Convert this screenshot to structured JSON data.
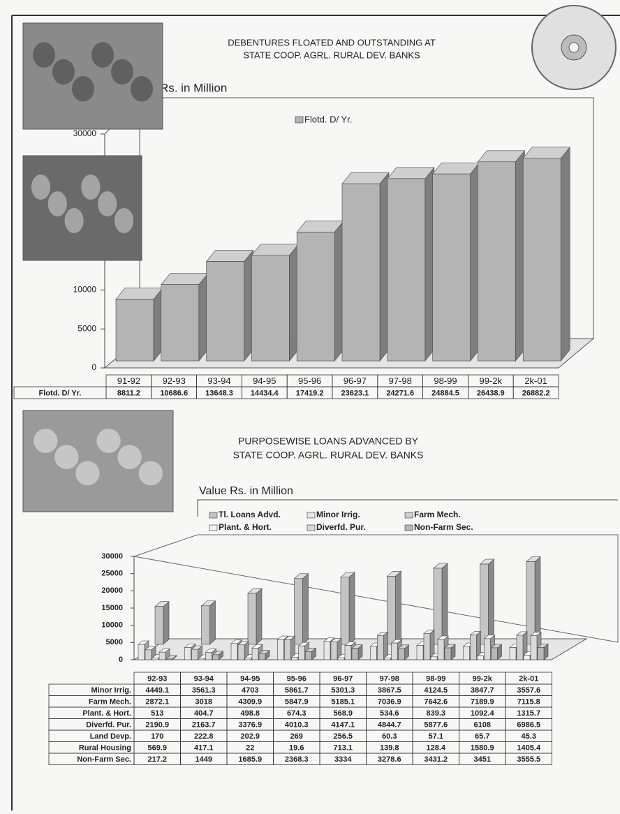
{
  "chart_data": [
    {
      "type": "bar3d",
      "title_lines": [
        "DEBENTURES FLOATED AND OUTSTANDING AT",
        "STATE COOP. AGRL. RURAL DEV. BANKS"
      ],
      "y_label": "Value Rs. in Million",
      "categories": [
        "91-92",
        "92-93",
        "93-94",
        "94-95",
        "95-96",
        "96-97",
        "97-98",
        "98-99",
        "99-2k",
        "2k-01"
      ],
      "series": [
        {
          "name": "Flotd. D/ Yr.",
          "color": "#b4b4b4",
          "show_bar": true,
          "in_table": true,
          "values": [
            8811.2,
            10686.6,
            13648.3,
            14434.4,
            17419.2,
            23623.1,
            24271.6,
            24884.5,
            26438.9,
            26882.2
          ]
        }
      ],
      "ylim": [
        0,
        30000
      ],
      "yticks": [
        0,
        5000,
        10000,
        15000,
        20000,
        25000,
        30000
      ]
    },
    {
      "type": "clustered3d",
      "title_lines": [
        "PURPOSEWISE LOANS ADVANCED BY",
        "STATE COOP. AGRL. RURAL DEV. BANKS"
      ],
      "y_label": "Value Rs. in Million",
      "categories": [
        "92-93",
        "93-94",
        "94-95",
        "95-96",
        "96-97",
        "97-98",
        "98-99",
        "99-2k",
        "2k-01"
      ],
      "series": [
        {
          "name": "Tl. Loans Advd.",
          "color": "#c4c4c4",
          "show_bar": true,
          "in_table": false,
          "values": [
            11000,
            11200,
            14800,
            19100,
            19500,
            19800,
            22100,
            23300,
            24000
          ]
        },
        {
          "name": "Minor Irrig.",
          "color": "#e6e6e6",
          "show_bar": true,
          "in_table": true,
          "values": [
            4449.1,
            3561.3,
            4703,
            5861.7,
            5301.3,
            3867.5,
            4124.5,
            3847.7,
            3557.6
          ]
        },
        {
          "name": "Farm Mech.",
          "color": "#cfcfcf",
          "show_bar": true,
          "in_table": true,
          "values": [
            2872.1,
            3018,
            4309.9,
            5847.9,
            5185.1,
            7036.9,
            7642.6,
            7189.9,
            7115.8
          ]
        },
        {
          "name": "Plant. & Hort.",
          "color": "#f2f2f2",
          "show_bar": true,
          "in_table": true,
          "values": [
            513,
            404.7,
            498.8,
            674.3,
            568.9,
            534.6,
            839.3,
            1092.4,
            1315.7
          ]
        },
        {
          "name": "Diverfd. Pur.",
          "color": "#dadada",
          "show_bar": true,
          "in_table": true,
          "values": [
            2190.9,
            2163.7,
            3376.9,
            4010.3,
            4147.1,
            4844.7,
            5877.6,
            6108,
            6986.5
          ]
        },
        {
          "name": "Land Devp.",
          "show_bar": false,
          "in_table": true,
          "values": [
            170,
            222.8,
            202.9,
            269,
            256.5,
            60.3,
            57.1,
            65.7,
            45.3
          ]
        },
        {
          "name": "Rural Housing",
          "show_bar": false,
          "in_table": true,
          "values": [
            569.9,
            417.1,
            22,
            19.6,
            713.1,
            139.8,
            128.4,
            1580.9,
            1405.4
          ]
        },
        {
          "name": "Non-Farm Sec.",
          "color": "#b8b8b8",
          "show_bar": true,
          "in_table": true,
          "values": [
            217.2,
            1449,
            1685.9,
            2368.3,
            3334,
            3278.6,
            3431.2,
            3451,
            3555.5
          ]
        }
      ],
      "ylim": [
        0,
        30000
      ],
      "yticks": [
        0,
        5000,
        10000,
        15000,
        20000,
        25000,
        30000
      ]
    }
  ]
}
